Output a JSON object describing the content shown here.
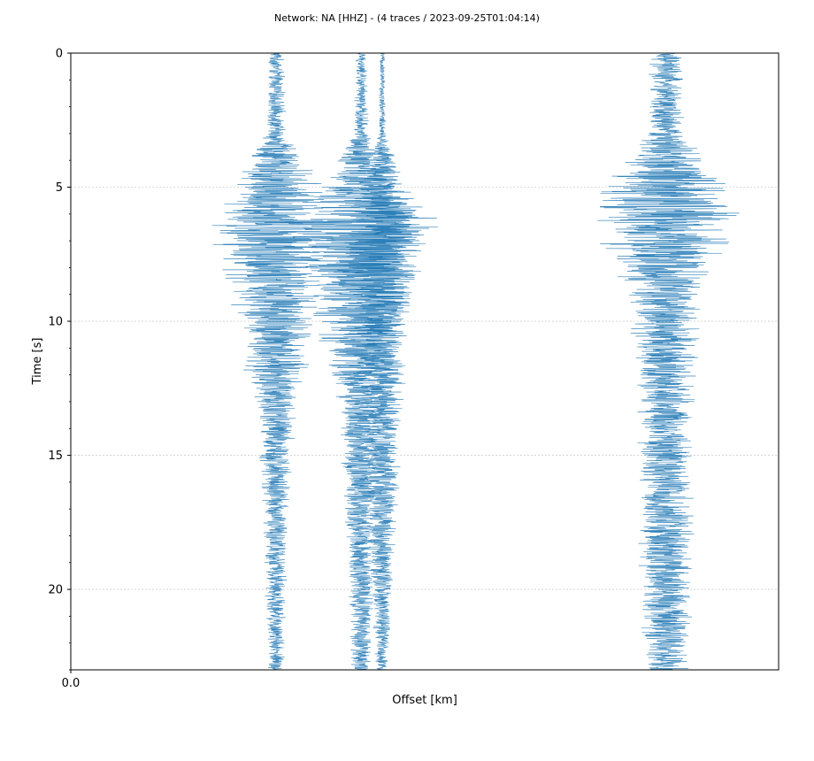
{
  "chart_data": {
    "type": "seismogram-section",
    "title": "Network: NA [HHZ] - (4 traces / 2023-09-25T01:04:14)",
    "xlabel": "Offset [km]",
    "ylabel": "Time [s]",
    "ylim": [
      0,
      23
    ],
    "y_inverted": true,
    "yticks": [
      0,
      5,
      10,
      15,
      20
    ],
    "ytick_labels": [
      "0",
      "5",
      "10",
      "15",
      "20"
    ],
    "xtick_labels": [
      "0.0"
    ],
    "grid": "horizontal",
    "trace_color": "#1f77b4",
    "traces": [
      {
        "center": 0.29,
        "background_halfwidth": 0.01,
        "peak_halfwidth": 0.1,
        "peak_time": 7.0,
        "envelope": [
          [
            0,
            0.012
          ],
          [
            3,
            0.015
          ],
          [
            4.5,
            0.06
          ],
          [
            6.7,
            0.1
          ],
          [
            9,
            0.07
          ],
          [
            11.5,
            0.05
          ],
          [
            14,
            0.03
          ],
          [
            17,
            0.02
          ],
          [
            23,
            0.012
          ]
        ]
      },
      {
        "center": 0.41,
        "background_halfwidth": 0.008,
        "peak_halfwidth": 0.14,
        "peak_time": 7.2,
        "envelope": [
          [
            0,
            0.008
          ],
          [
            3,
            0.012
          ],
          [
            4.5,
            0.05
          ],
          [
            6.5,
            0.13
          ],
          [
            8,
            0.09
          ],
          [
            10.5,
            0.07
          ],
          [
            12.5,
            0.04
          ],
          [
            15,
            0.03
          ],
          [
            23,
            0.015
          ]
        ]
      },
      {
        "center": 0.44,
        "background_halfwidth": 0.004,
        "peak_halfwidth": 0.07,
        "peak_time": 7.5,
        "envelope": [
          [
            0,
            0.004
          ],
          [
            3,
            0.006
          ],
          [
            5,
            0.04
          ],
          [
            7.5,
            0.07
          ],
          [
            10,
            0.04
          ],
          [
            14,
            0.03
          ],
          [
            23,
            0.01
          ]
        ]
      },
      {
        "center": 0.84,
        "background_halfwidth": 0.03,
        "peak_halfwidth": 0.12,
        "peak_time": 5.6,
        "envelope": [
          [
            0,
            0.025
          ],
          [
            3,
            0.03
          ],
          [
            4.2,
            0.07
          ],
          [
            5.6,
            0.12
          ],
          [
            7,
            0.1
          ],
          [
            9,
            0.06
          ],
          [
            11,
            0.05
          ],
          [
            14,
            0.04
          ],
          [
            18,
            0.045
          ],
          [
            20,
            0.04
          ],
          [
            23,
            0.035
          ]
        ]
      }
    ]
  }
}
